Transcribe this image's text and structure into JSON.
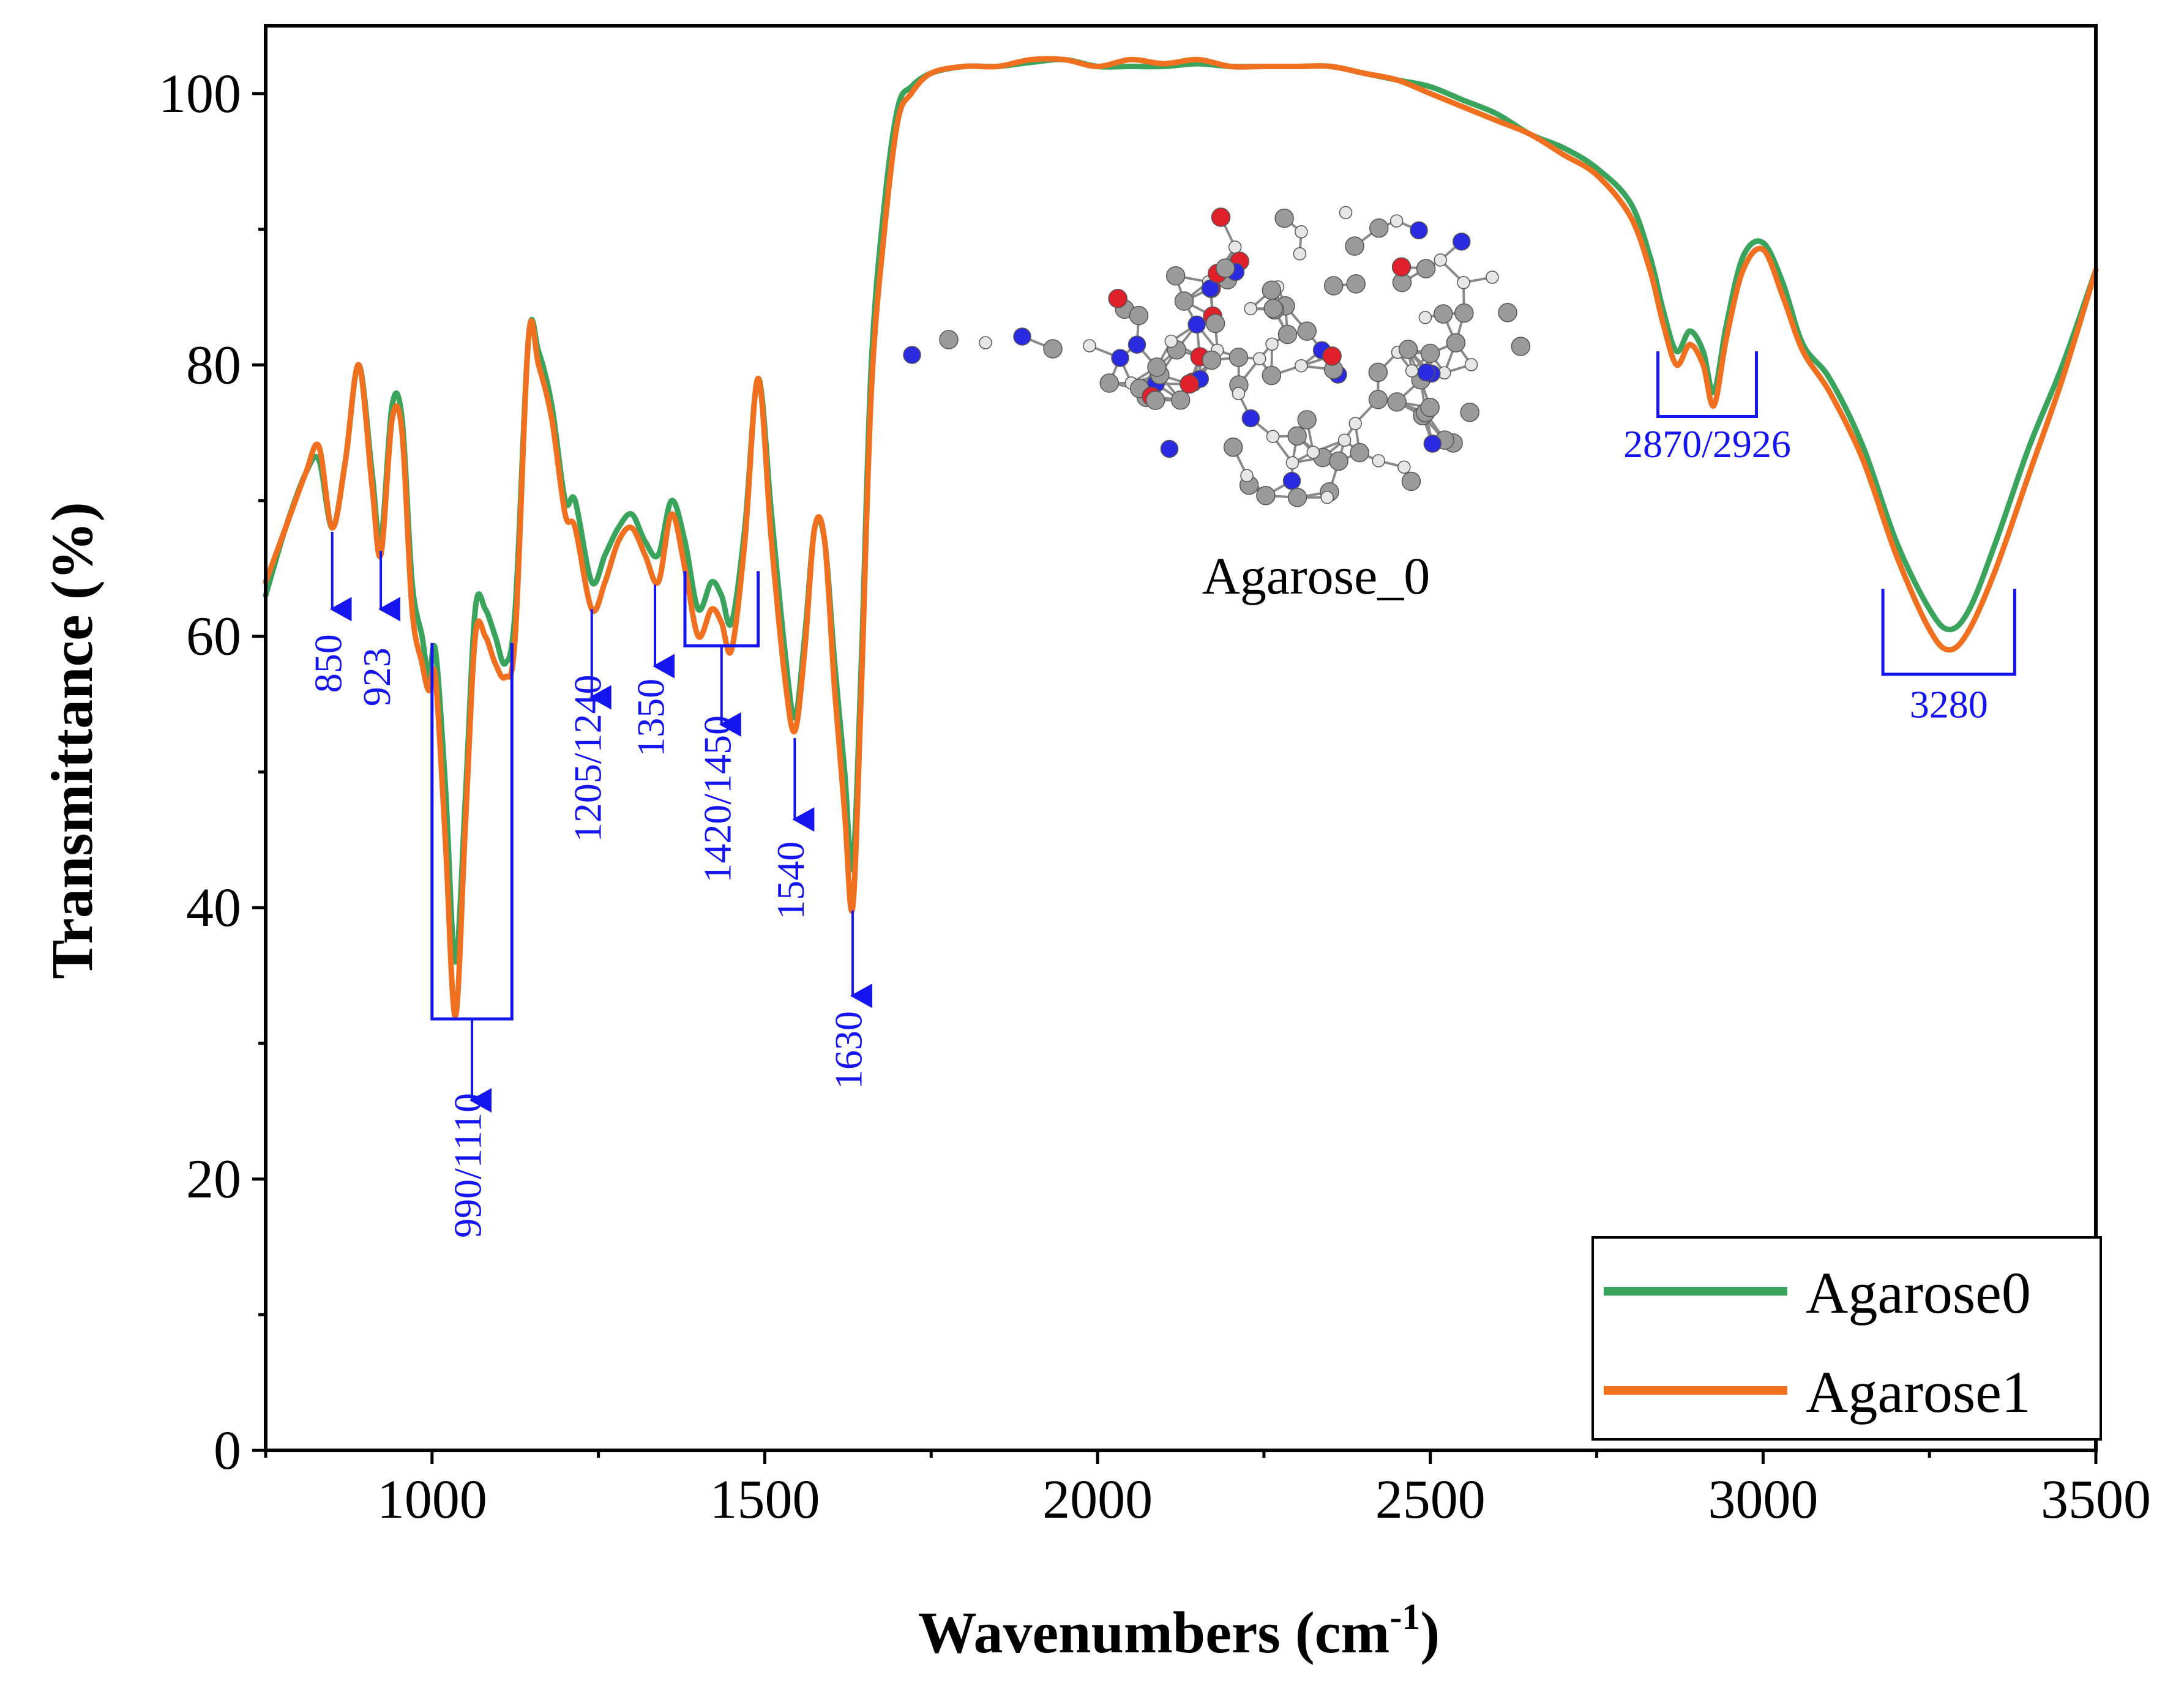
{
  "chart_data": {
    "type": "line",
    "xlabel_main": "Wavenumbers (cm",
    "xlabel_sup": "-1",
    "xlabel_close": ")",
    "ylabel": "Transmittance (%)",
    "xlim": [
      750,
      3500
    ],
    "ylim": [
      0,
      105
    ],
    "xticks": [
      1000,
      1500,
      2000,
      2500,
      3000,
      3500
    ],
    "yticks": [
      0,
      20,
      40,
      60,
      80,
      100
    ],
    "grid": false,
    "legend_position": "bottom-right",
    "colors": {
      "Agarose0": "#3aa45c",
      "Agarose1": "#f07020",
      "annotation": "#1515f0"
    },
    "series": [
      {
        "name": "Agarose0",
        "x": [
          750,
          780,
          810,
          830,
          850,
          870,
          890,
          910,
          923,
          940,
          955,
          970,
          985,
          995,
          1005,
          1020,
          1035,
          1050,
          1065,
          1080,
          1095,
          1110,
          1125,
          1145,
          1160,
          1180,
          1200,
          1215,
          1240,
          1260,
          1280,
          1300,
          1320,
          1340,
          1360,
          1380,
          1400,
          1420,
          1435,
          1450,
          1470,
          1490,
          1510,
          1530,
          1545,
          1560,
          1575,
          1590,
          1605,
          1620,
          1632,
          1645,
          1660,
          1680,
          1700,
          1720,
          1750,
          1800,
          1850,
          1900,
          1950,
          2000,
          2050,
          2100,
          2150,
          2200,
          2250,
          2300,
          2350,
          2400,
          2450,
          2500,
          2550,
          2600,
          2650,
          2700,
          2750,
          2800,
          2830,
          2850,
          2870,
          2890,
          2910,
          2926,
          2945,
          2970,
          3000,
          3030,
          3060,
          3100,
          3150,
          3200,
          3250,
          3280,
          3310,
          3350,
          3400,
          3450,
          3500
        ],
        "y": [
          63,
          68,
          72,
          73,
          68,
          73,
          80,
          72,
          67,
          77,
          76,
          64,
          60,
          57,
          59,
          49,
          36,
          48,
          62,
          62,
          60,
          58,
          62,
          82,
          81,
          77,
          70,
          70,
          64,
          66,
          68,
          69,
          67,
          66,
          70,
          67,
          62,
          64,
          63,
          61,
          68,
          79,
          69,
          59,
          54,
          60,
          68,
          67,
          58,
          50,
          43,
          58,
          80,
          92,
          99,
          100.5,
          101.5,
          102,
          102,
          102.3,
          102.5,
          102,
          102,
          102,
          102.2,
          102,
          102,
          102,
          102,
          101.5,
          101,
          100.5,
          99.5,
          98.5,
          97,
          96,
          94.5,
          92,
          88,
          84,
          81,
          82.5,
          81,
          78,
          83,
          88,
          89,
          86,
          81.5,
          79,
          74,
          67,
          62,
          60.5,
          62,
          67,
          74,
          80,
          87
        ]
      },
      {
        "name": "Agarose1",
        "x": [
          750,
          780,
          810,
          830,
          850,
          870,
          890,
          910,
          923,
          940,
          955,
          970,
          985,
          995,
          1005,
          1020,
          1035,
          1050,
          1065,
          1080,
          1095,
          1110,
          1125,
          1145,
          1160,
          1180,
          1200,
          1215,
          1240,
          1260,
          1280,
          1300,
          1320,
          1340,
          1360,
          1380,
          1400,
          1420,
          1435,
          1450,
          1470,
          1490,
          1510,
          1530,
          1545,
          1560,
          1575,
          1590,
          1605,
          1620,
          1632,
          1645,
          1660,
          1680,
          1700,
          1720,
          1750,
          1800,
          1850,
          1900,
          1950,
          2000,
          2050,
          2100,
          2150,
          2200,
          2250,
          2300,
          2350,
          2400,
          2450,
          2500,
          2550,
          2600,
          2650,
          2700,
          2750,
          2800,
          2830,
          2850,
          2870,
          2890,
          2910,
          2926,
          2945,
          2970,
          3000,
          3030,
          3060,
          3100,
          3150,
          3200,
          3250,
          3280,
          3310,
          3350,
          3400,
          3450,
          3500
        ],
        "y": [
          64,
          68,
          72,
          74,
          68,
          73,
          80,
          71,
          66,
          76,
          75,
          62,
          58,
          56,
          57,
          45,
          32,
          46,
          60,
          60,
          58,
          57,
          60,
          82,
          80,
          76,
          69,
          68,
          62,
          64,
          67,
          68,
          66,
          64,
          69,
          65,
          60,
          62,
          61,
          59,
          67,
          79,
          67,
          57,
          53,
          59,
          68,
          67,
          56,
          47,
          40,
          56,
          78,
          90,
          98,
          100,
          101.5,
          102,
          102,
          102.5,
          102.5,
          102,
          102.5,
          102.2,
          102.5,
          102,
          102,
          102,
          102,
          101.5,
          101,
          100,
          99,
          98,
          97,
          95.5,
          94,
          91,
          87,
          83,
          80,
          81.5,
          80,
          77,
          82,
          87,
          88.5,
          85,
          81,
          78,
          73,
          66,
          60.5,
          59,
          60.5,
          65,
          72,
          79,
          87
        ]
      }
    ],
    "annotations": [
      {
        "label": "850",
        "kind": "arrow",
        "x": 850,
        "y_top": 67.7,
        "y_bottom": 62,
        "text_y": 58
      },
      {
        "label": "923",
        "kind": "arrow",
        "x": 923,
        "y_top": 66.3,
        "y_bottom": 62,
        "text_y": 57
      },
      {
        "label": "990/1110",
        "kind": "bracket-arrow",
        "x1": 1000,
        "x2": 1120,
        "y_top": 59.5,
        "y_bottom": 31.8,
        "arrow_x": 1060,
        "arrow_end": 25.8,
        "text_y": 21
      },
      {
        "label": "1205/1240",
        "kind": "arrow",
        "x": 1240,
        "y_top": 62,
        "y_bottom": 55.5,
        "text_y": 51
      },
      {
        "label": "1350",
        "kind": "arrow",
        "x": 1335,
        "y_top": 63.8,
        "y_bottom": 57.8,
        "text_y": 54
      },
      {
        "label": "1420/1450",
        "kind": "bracket-arrow",
        "x1": 1380,
        "x2": 1490,
        "y_top": 64.8,
        "y_bottom": 59.3,
        "arrow_x": 1435,
        "arrow_end": 53.5,
        "text_y": 48
      },
      {
        "label": "1540",
        "kind": "arrow",
        "x": 1545,
        "y_top": 52.5,
        "y_bottom": 46.5,
        "text_y": 42
      },
      {
        "label": "1630",
        "kind": "arrow",
        "x": 1632,
        "y_top": 39.8,
        "y_bottom": 33.5,
        "text_y": 29.5
      },
      {
        "label": "2870/2926",
        "kind": "bracket-up",
        "x1": 2842,
        "x2": 2990,
        "y_top": 81,
        "y_bottom": 76.2,
        "text_y": 73.2
      },
      {
        "label": "3280",
        "kind": "bracket-up",
        "x1": 3180,
        "x2": 3378,
        "y_top": 63.5,
        "y_bottom": 57.2,
        "text_y": 54
      }
    ],
    "inset_label": "Agarose_0"
  }
}
